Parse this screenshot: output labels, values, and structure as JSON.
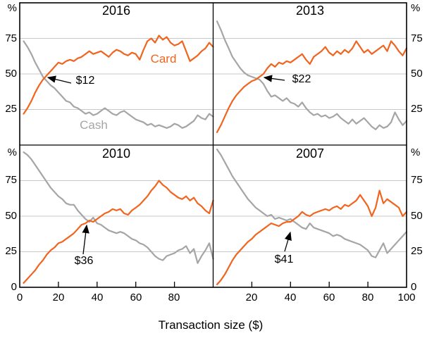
{
  "colors": {
    "card": "#F1641E",
    "cash": "#A5A5A5",
    "grid": "#C8C8C8",
    "axis": "#000000"
  },
  "legend": {
    "card_label": "Card",
    "cash_label": "Cash"
  },
  "axes": {
    "y_unit": "%",
    "y_ticks": [
      "75",
      "50",
      "25"
    ],
    "y_zero": "0",
    "x_ticks_left": [
      "0",
      "20",
      "40",
      "60",
      "80"
    ],
    "x_ticks_right": [
      "20",
      "40",
      "60",
      "80",
      "100"
    ],
    "x_axis_label": "Transaction size ($)",
    "x_range": [
      0,
      100
    ],
    "y_range": [
      0,
      100
    ],
    "grid": "horizontal-only"
  },
  "chart_data": {
    "type": "line",
    "layout": "2x2 small multiples, shared x axis, y axes labelled both sides",
    "x_start": 2,
    "x_step": 2,
    "xlabel": "Transaction size ($)",
    "ylabel": "%",
    "xlim": [
      0,
      100
    ],
    "ylim": [
      0,
      100
    ],
    "panels": [
      {
        "title": "2016",
        "crossover": {
          "label": "$12",
          "x": 12,
          "y": 47
        },
        "series": [
          {
            "name": "Card",
            "color_key": "card",
            "values": [
              22,
              26,
              31,
              37,
              42,
              46,
              49,
              52,
              55,
              58,
              57,
              59,
              60,
              59,
              61,
              62,
              64,
              66,
              64,
              65,
              66,
              64,
              62,
              65,
              67,
              66,
              64,
              63,
              65,
              64,
              60,
              67,
              73,
              75,
              72,
              77,
              74,
              76,
              72,
              70,
              71,
              73,
              66,
              59,
              61,
              63,
              66,
              68,
              72,
              69
            ]
          },
          {
            "name": "Cash",
            "color_key": "cash",
            "values": [
              73,
              69,
              64,
              58,
              53,
              48,
              45,
              42,
              40,
              37,
              34,
              31,
              30,
              27,
              26,
              24,
              22,
              23,
              21,
              22,
              24,
              26,
              24,
              22,
              21,
              23,
              24,
              22,
              20,
              18,
              17,
              16,
              14,
              15,
              13,
              14,
              13,
              12,
              13,
              15,
              14,
              12,
              13,
              15,
              17,
              21,
              19,
              18,
              22,
              20
            ]
          }
        ]
      },
      {
        "title": "2013",
        "crossover": {
          "label": "$22",
          "x": 22,
          "y": 46
        },
        "series": [
          {
            "name": "Card",
            "color_key": "card",
            "values": [
              9,
              14,
              20,
              26,
              31,
              35,
              38,
              41,
              43,
              45,
              46,
              48,
              50,
              54,
              57,
              55,
              58,
              57,
              59,
              58,
              60,
              62,
              64,
              60,
              57,
              62,
              64,
              66,
              69,
              65,
              63,
              66,
              64,
              67,
              65,
              68,
              73,
              69,
              65,
              67,
              64,
              66,
              68,
              70,
              66,
              73,
              70,
              66,
              63,
              68
            ]
          },
          {
            "name": "Cash",
            "color_key": "cash",
            "values": [
              87,
              81,
              74,
              68,
              62,
              58,
              54,
              51,
              49,
              48,
              47,
              46,
              43,
              38,
              34,
              35,
              33,
              31,
              33,
              30,
              29,
              27,
              30,
              26,
              23,
              21,
              22,
              20,
              21,
              19,
              20,
              22,
              19,
              17,
              15,
              18,
              15,
              17,
              19,
              16,
              13,
              11,
              14,
              12,
              13,
              16,
              23,
              18,
              14,
              17
            ]
          }
        ]
      },
      {
        "title": "2010",
        "crossover": {
          "label": "$36",
          "x": 36,
          "y": 48
        },
        "series": [
          {
            "name": "Card",
            "color_key": "card",
            "values": [
              3,
              6,
              9,
              12,
              16,
              19,
              23,
              26,
              28,
              31,
              32,
              34,
              36,
              38,
              41,
              44,
              45,
              47,
              46,
              48,
              50,
              52,
              53,
              55,
              54,
              55,
              52,
              51,
              54,
              56,
              58,
              61,
              64,
              68,
              71,
              75,
              72,
              70,
              67,
              65,
              63,
              62,
              64,
              61,
              63,
              59,
              57,
              54,
              52,
              61
            ]
          },
          {
            "name": "Cash",
            "color_key": "cash",
            "values": [
              95,
              93,
              90,
              86,
              82,
              78,
              74,
              70,
              67,
              64,
              62,
              59,
              58,
              58,
              54,
              51,
              48,
              46,
              49,
              45,
              44,
              42,
              40,
              39,
              38,
              39,
              38,
              36,
              34,
              33,
              31,
              30,
              28,
              25,
              22,
              20,
              19,
              22,
              23,
              24,
              26,
              27,
              29,
              24,
              27,
              17,
              22,
              26,
              31,
              20
            ]
          }
        ]
      },
      {
        "title": "2007",
        "crossover": {
          "label": "$41",
          "x": 41,
          "y": 48
        },
        "series": [
          {
            "name": "Card",
            "color_key": "card",
            "values": [
              2,
              5,
              9,
              14,
              19,
              23,
              26,
              29,
              32,
              34,
              37,
              39,
              41,
              43,
              45,
              44,
              43,
              45,
              46,
              46,
              48,
              50,
              53,
              51,
              50,
              52,
              53,
              54,
              55,
              54,
              56,
              57,
              55,
              58,
              57,
              59,
              61,
              65,
              61,
              57,
              50,
              56,
              68,
              59,
              62,
              60,
              58,
              56,
              50,
              53
            ]
          },
          {
            "name": "Cash",
            "color_key": "cash",
            "values": [
              97,
              93,
              88,
              83,
              78,
              74,
              70,
              66,
              62,
              59,
              56,
              54,
              52,
              50,
              51,
              48,
              49,
              48,
              47,
              48,
              46,
              44,
              42,
              41,
              45,
              42,
              41,
              40,
              39,
              38,
              36,
              37,
              36,
              34,
              33,
              32,
              31,
              30,
              28,
              26,
              22,
              21,
              26,
              31,
              24,
              27,
              30,
              33,
              36,
              39
            ]
          }
        ]
      }
    ]
  }
}
